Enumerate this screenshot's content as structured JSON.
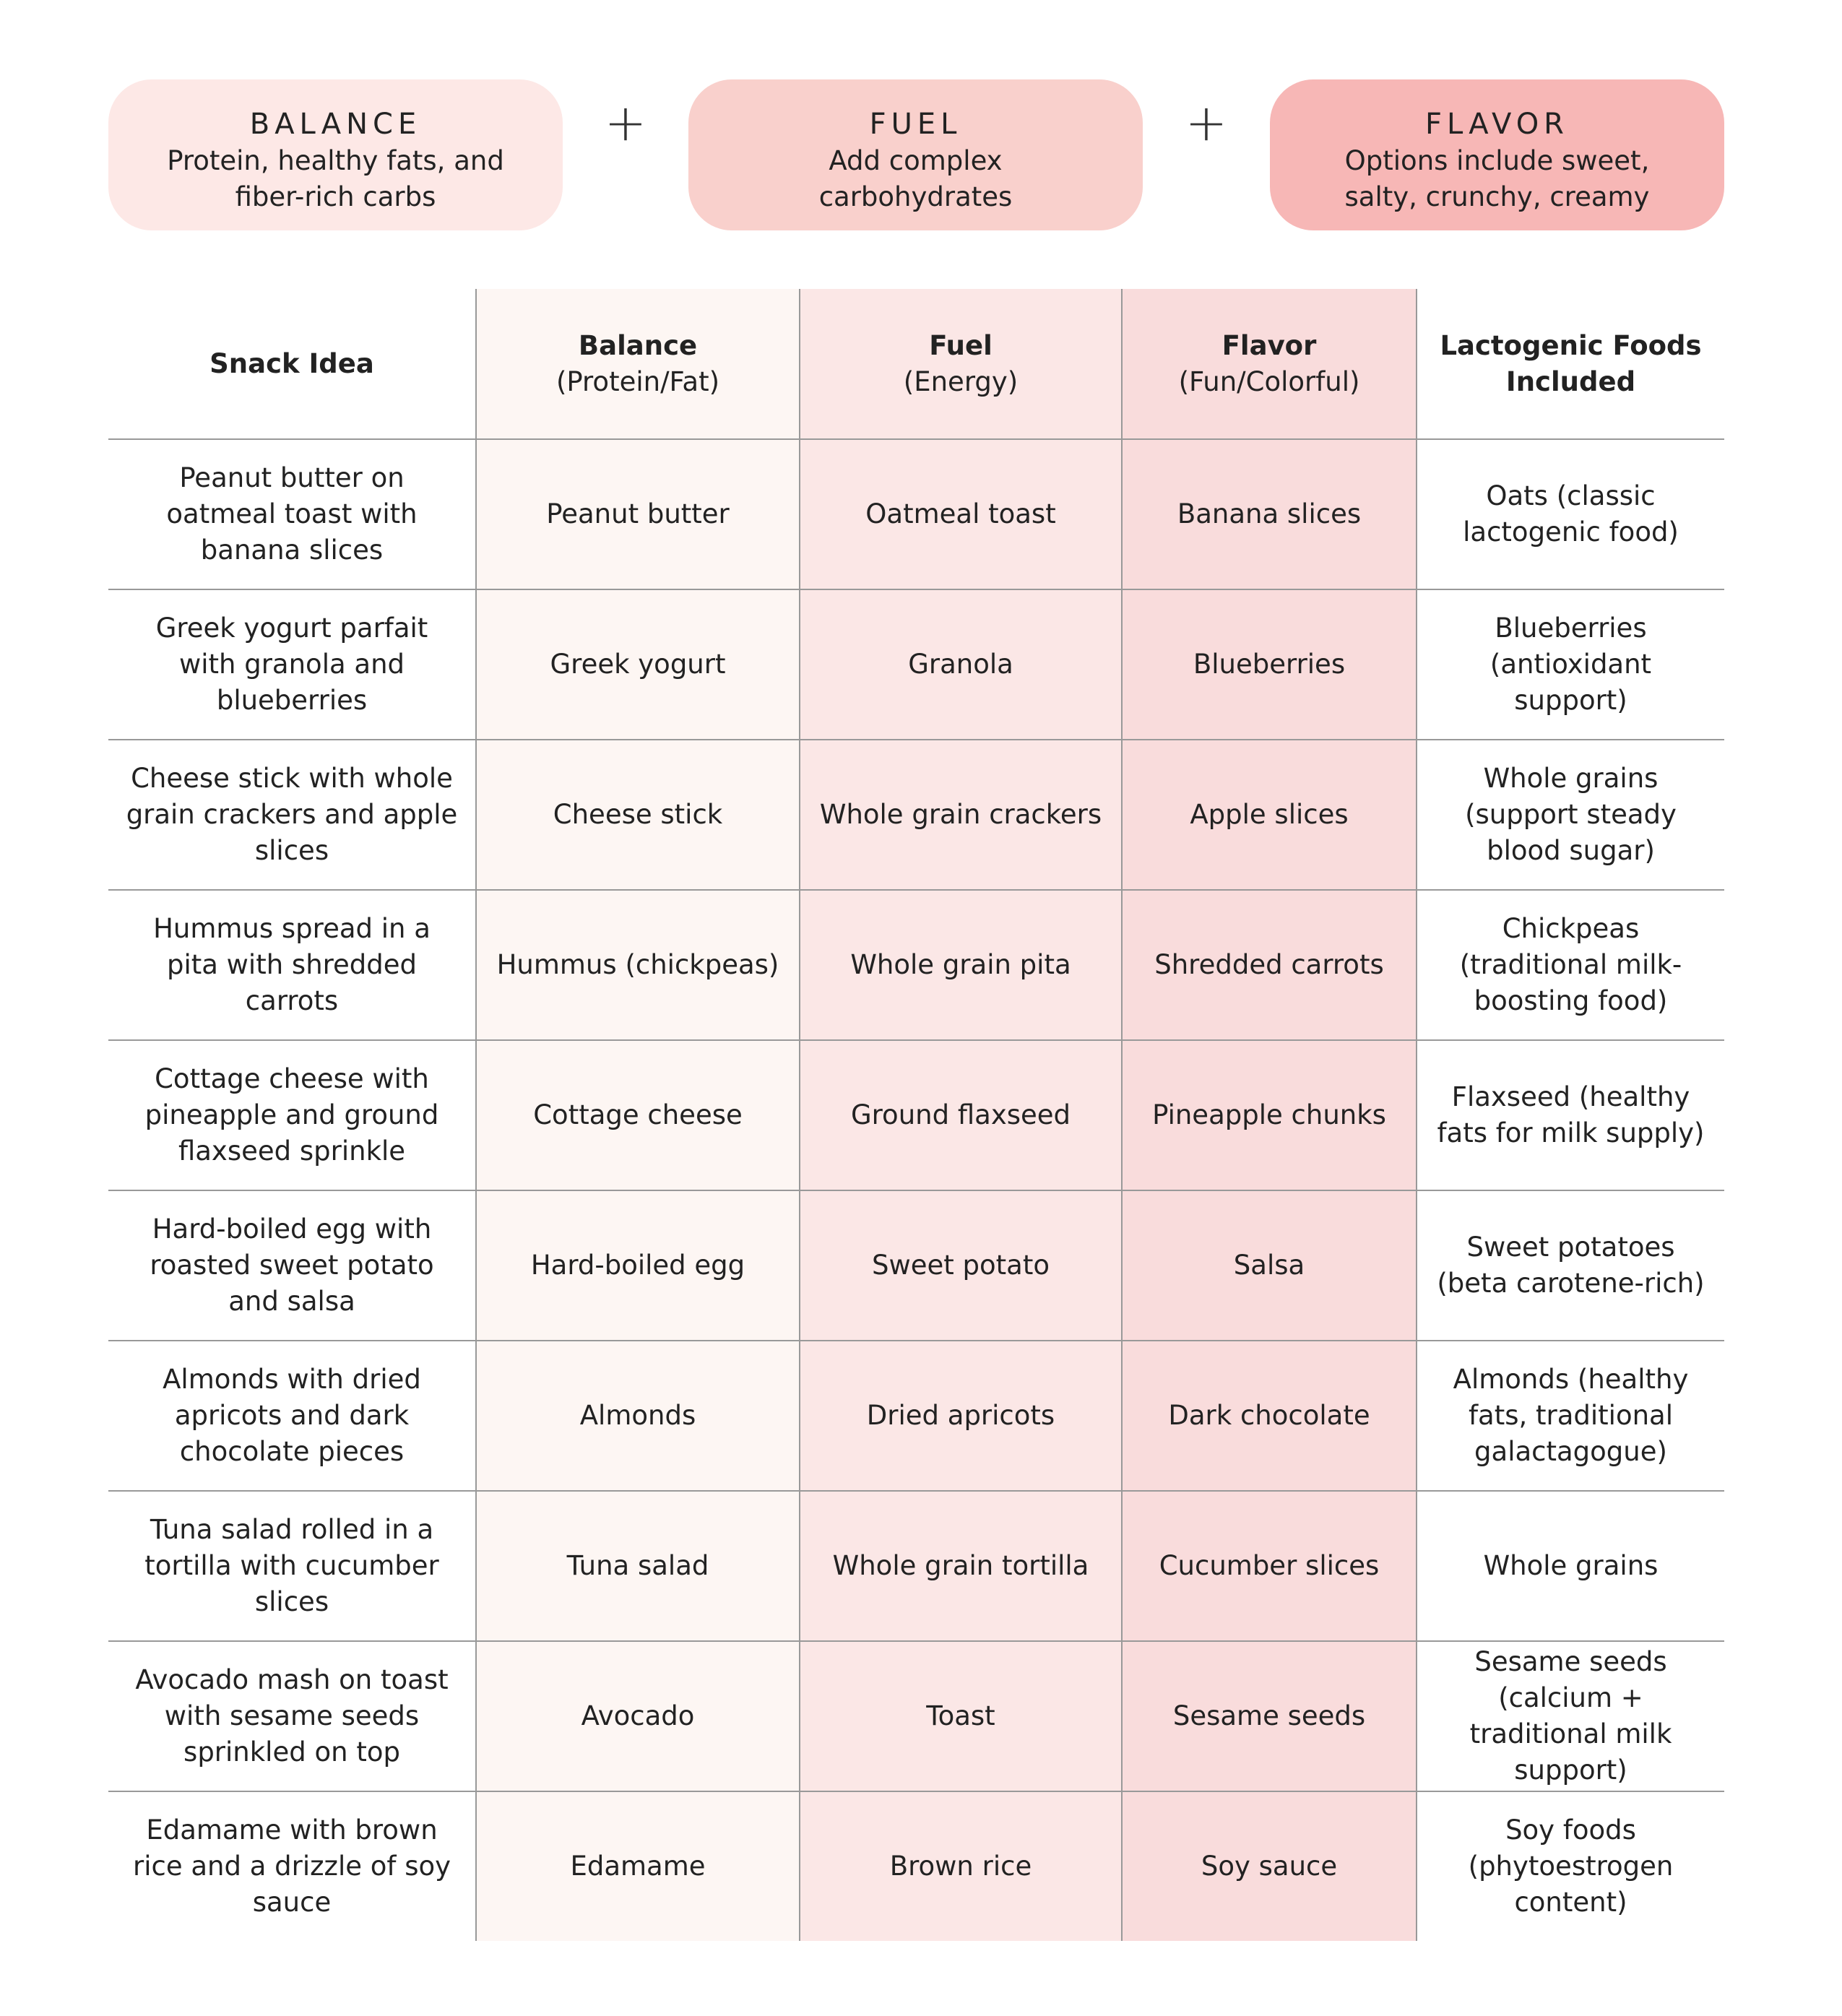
{
  "header": {
    "pills": [
      {
        "title": "BALANCE",
        "text": "Protein, healthy fats, and fiber-rich carbs"
      },
      {
        "title": "FUEL",
        "text": "Add complex carbohydrates"
      },
      {
        "title": "FLAVOR",
        "text": "Options include sweet, salty, crunchy, creamy"
      }
    ],
    "operators": [
      "+",
      "+"
    ]
  },
  "table": {
    "columns": [
      {
        "title": "Snack Idea"
      },
      {
        "title": "Balance",
        "subtitle": "(Protein/Fat)"
      },
      {
        "title": "Fuel",
        "subtitle": "(Energy)"
      },
      {
        "title": "Flavor",
        "subtitle": "(Fun/Colorful)"
      },
      {
        "title": "Lactogenic Foods Included"
      }
    ],
    "rows": [
      [
        "Peanut butter on oatmeal toast with banana slices",
        "Peanut butter",
        "Oatmeal toast",
        "Banana slices",
        "Oats (classic lactogenic food)"
      ],
      [
        "Greek yogurt parfait with granola and blueberries",
        "Greek yogurt",
        "Granola",
        "Blueberries",
        "Blueberries (antioxidant support)"
      ],
      [
        "Cheese stick with whole grain crackers and apple slices",
        "Cheese stick",
        "Whole grain crackers",
        "Apple slices",
        "Whole grains (support steady blood sugar)"
      ],
      [
        "Hummus spread in a pita with shredded carrots",
        "Hummus (chickpeas)",
        "Whole grain pita",
        "Shredded carrots",
        "Chickpeas (traditional milk-boosting food)"
      ],
      [
        "Cottage cheese with pineapple and ground flaxseed sprinkle",
        "Cottage cheese",
        "Ground flaxseed",
        "Pineapple chunks",
        "Flaxseed (healthy fats for milk supply)"
      ],
      [
        "Hard-boiled egg with roasted sweet potato and salsa",
        "Hard-boiled egg",
        "Sweet potato",
        "Salsa",
        "Sweet potatoes (beta carotene-rich)"
      ],
      [
        "Almonds with dried apricots and dark chocolate pieces",
        "Almonds",
        "Dried apricots",
        "Dark chocolate",
        "Almonds (healthy fats, traditional galactagogue)"
      ],
      [
        "Tuna salad rolled in a tortilla with cucumber slices",
        "Tuna salad",
        "Whole grain tortilla",
        "Cucumber slices",
        "Whole grains"
      ],
      [
        "Avocado mash on toast with sesame seeds sprinkled on top",
        "Avocado",
        "Toast",
        "Sesame seeds",
        "Sesame seeds (calcium + traditional milk support)"
      ],
      [
        "Edamame with brown rice and a drizzle of soy sauce",
        "Edamame",
        "Brown rice",
        "Soy sauce",
        "Soy foods (phytoestrogen content)"
      ]
    ]
  }
}
